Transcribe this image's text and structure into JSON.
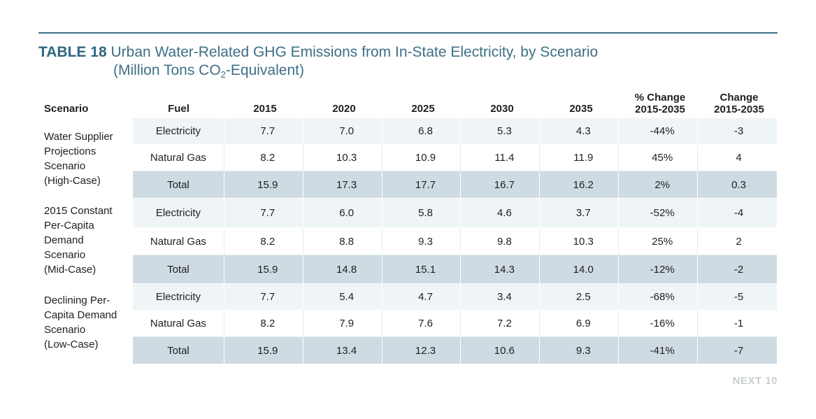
{
  "title": {
    "label": "TABLE 18",
    "text_line1": "Urban Water-Related GHG Emissions from In-State Electricity, by Scenario",
    "text_line2_pre": "(Million Tons CO",
    "text_line2_sub": "2",
    "text_line2_post": "-Equivalent)"
  },
  "headers": {
    "scenario": "Scenario",
    "fuel": "Fuel",
    "years": [
      "2015",
      "2020",
      "2025",
      "2030",
      "2035"
    ],
    "pct_change_l1": "% Change",
    "pct_change_l2": "2015-2035",
    "change_l1": "Change",
    "change_l2": "2015-2035"
  },
  "scenarios": [
    {
      "name_lines": [
        "Water Supplier",
        "Projections",
        "Scenario",
        "(High-Case)"
      ],
      "rows": [
        {
          "fuel": "Electricity",
          "values": [
            "7.7",
            "7.0",
            "6.8",
            "5.3",
            "4.3"
          ],
          "pct_change": "-44%",
          "change": "-3"
        },
        {
          "fuel": "Natural Gas",
          "values": [
            "8.2",
            "10.3",
            "10.9",
            "11.4",
            "11.9"
          ],
          "pct_change": "45%",
          "change": "4"
        },
        {
          "fuel": "Total",
          "values": [
            "15.9",
            "17.3",
            "17.7",
            "16.7",
            "16.2"
          ],
          "pct_change": "2%",
          "change": "0.3"
        }
      ]
    },
    {
      "name_lines": [
        "2015 Constant",
        "Per-Capita",
        "Demand",
        "Scenario",
        "(Mid-Case)"
      ],
      "rows": [
        {
          "fuel": "Electricity",
          "values": [
            "7.7",
            "6.0",
            "5.8",
            "4.6",
            "3.7"
          ],
          "pct_change": "-52%",
          "change": "-4"
        },
        {
          "fuel": "Natural Gas",
          "values": [
            "8.2",
            "8.8",
            "9.3",
            "9.8",
            "10.3"
          ],
          "pct_change": "25%",
          "change": "2"
        },
        {
          "fuel": "Total",
          "values": [
            "15.9",
            "14.8",
            "15.1",
            "14.3",
            "14.0"
          ],
          "pct_change": "-12%",
          "change": "-2"
        }
      ]
    },
    {
      "name_lines": [
        "Declining Per-",
        "Capita Demand",
        "Scenario",
        "(Low-Case)"
      ],
      "rows": [
        {
          "fuel": "Electricity",
          "values": [
            "7.7",
            "5.4",
            "4.7",
            "3.4",
            "2.5"
          ],
          "pct_change": "-68%",
          "change": "-5"
        },
        {
          "fuel": "Natural Gas",
          "values": [
            "8.2",
            "7.9",
            "7.6",
            "7.2",
            "6.9"
          ],
          "pct_change": "-16%",
          "change": "-1"
        },
        {
          "fuel": "Total",
          "values": [
            "15.9",
            "13.4",
            "12.3",
            "10.6",
            "9.3"
          ],
          "pct_change": "-41%",
          "change": "-7"
        }
      ]
    }
  ],
  "footer": "NEXT 10",
  "colors": {
    "accent": "#3e6f86",
    "row_light": "#eff4f7",
    "row_total": "#cfdbe3",
    "footer": "#c9ced1"
  }
}
